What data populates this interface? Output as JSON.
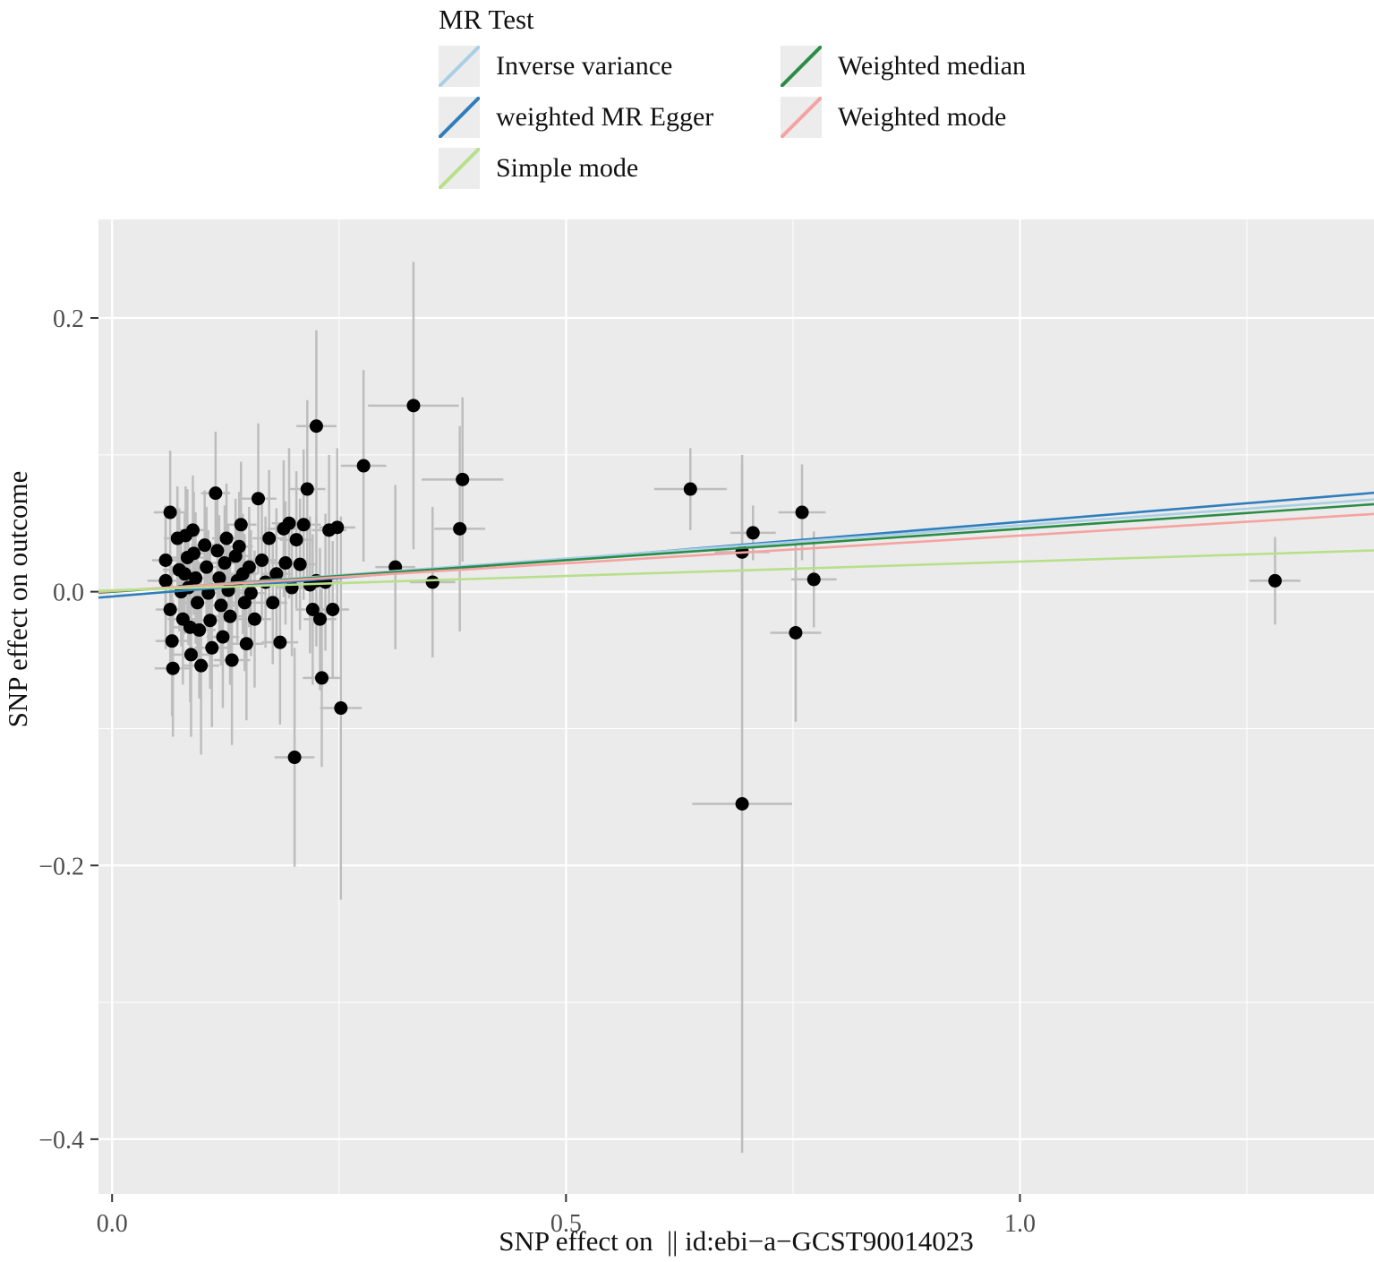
{
  "legend": {
    "title": "MR Test",
    "columns": [
      [
        {
          "label": "Inverse variance",
          "color": "#a9cfe5"
        },
        {
          "label": "weighted MR Egger",
          "color": "#2f7ebc"
        },
        {
          "label": "Simple mode",
          "color": "#b7e08a"
        }
      ],
      [
        {
          "label": "Weighted median",
          "color": "#2b8c46"
        },
        {
          "label": "Weighted mode",
          "color": "#f5a3a1"
        }
      ]
    ]
  },
  "chart_data": {
    "type": "scatter",
    "title": "",
    "xlabel": "SNP effect on  || id:ebi−a−GCST90014023",
    "ylabel": "SNP effect on outcome",
    "xlim": [
      -0.015,
      1.39
    ],
    "ylim": [
      -0.44,
      0.272
    ],
    "panel_background": "#ebebeb",
    "grid": true,
    "gridline_color": "#ffffff",
    "point_color": "#000000",
    "point_radius": 7.5,
    "errorbar_color": "#bdbdbd",
    "xticks": {
      "major": [
        0.0,
        0.5,
        1.0
      ],
      "minor": [
        0.25,
        0.75,
        1.25
      ],
      "labels": [
        "0.0",
        "0.5",
        "1.0"
      ]
    },
    "yticks": {
      "major": [
        0.2,
        0.0,
        -0.2,
        -0.4
      ],
      "minor": [
        0.1,
        -0.1,
        -0.3
      ],
      "labels": [
        "0.2",
        "0.0",
        "−0.2",
        "−0.4"
      ]
    },
    "lines": [
      {
        "name": "MR Egger",
        "color": "#2f7ebc",
        "intercept": -0.0035,
        "slope": 0.0545
      },
      {
        "name": "Inverse variance weighted",
        "color": "#a9cfe5",
        "intercept": 0.0,
        "slope": 0.0485
      },
      {
        "name": "Weighted median",
        "color": "#2b8c46",
        "intercept": 0.0,
        "slope": 0.046
      },
      {
        "name": "Weighted mode",
        "color": "#f5a3a1",
        "intercept": 0.0005,
        "slope": 0.0405
      },
      {
        "name": "Simple mode",
        "color": "#b7e08a",
        "intercept": 0.001,
        "slope": 0.021
      }
    ],
    "points": [
      [
        0.064,
        0.058,
        0.018,
        0.045
      ],
      [
        0.059,
        0.023,
        0.015,
        0.04
      ],
      [
        0.059,
        0.008,
        0.02,
        0.05
      ],
      [
        0.064,
        -0.013,
        0.016,
        0.042
      ],
      [
        0.066,
        -0.036,
        0.018,
        0.055
      ],
      [
        0.067,
        -0.056,
        0.02,
        0.05
      ],
      [
        0.072,
        0.039,
        0.015,
        0.038
      ],
      [
        0.074,
        0.016,
        0.018,
        0.045
      ],
      [
        0.076,
        0.0,
        0.015,
        0.04
      ],
      [
        0.078,
        -0.02,
        0.017,
        0.048
      ],
      [
        0.08,
        0.013,
        0.016,
        0.044
      ],
      [
        0.081,
        0.041,
        0.014,
        0.036
      ],
      [
        0.083,
        0.025,
        0.018,
        0.05
      ],
      [
        0.084,
        0.003,
        0.015,
        0.042
      ],
      [
        0.086,
        -0.026,
        0.019,
        0.055
      ],
      [
        0.087,
        -0.046,
        0.02,
        0.06
      ],
      [
        0.089,
        0.045,
        0.015,
        0.04
      ],
      [
        0.09,
        0.028,
        0.016,
        0.045
      ],
      [
        0.092,
        0.01,
        0.017,
        0.048
      ],
      [
        0.094,
        -0.008,
        0.015,
        0.042
      ],
      [
        0.096,
        -0.028,
        0.018,
        0.05
      ],
      [
        0.098,
        -0.054,
        0.02,
        0.065
      ],
      [
        0.102,
        0.034,
        0.015,
        0.04
      ],
      [
        0.104,
        0.018,
        0.016,
        0.044
      ],
      [
        0.106,
        -0.001,
        0.017,
        0.046
      ],
      [
        0.108,
        -0.021,
        0.018,
        0.05
      ],
      [
        0.11,
        -0.041,
        0.019,
        0.058
      ],
      [
        0.114,
        0.072,
        0.016,
        0.045
      ],
      [
        0.116,
        0.03,
        0.015,
        0.04
      ],
      [
        0.118,
        0.01,
        0.017,
        0.046
      ],
      [
        0.12,
        -0.01,
        0.016,
        0.044
      ],
      [
        0.122,
        -0.033,
        0.018,
        0.052
      ],
      [
        0.124,
        0.021,
        0.015,
        0.042
      ],
      [
        0.126,
        0.039,
        0.016,
        0.04
      ],
      [
        0.128,
        0.001,
        0.017,
        0.048
      ],
      [
        0.13,
        -0.018,
        0.018,
        0.05
      ],
      [
        0.132,
        -0.05,
        0.02,
        0.062
      ],
      [
        0.136,
        0.026,
        0.015,
        0.042
      ],
      [
        0.138,
        0.008,
        0.016,
        0.045
      ],
      [
        0.14,
        0.033,
        0.015,
        0.04
      ],
      [
        0.142,
        0.049,
        0.017,
        0.046
      ],
      [
        0.144,
        0.013,
        0.016,
        0.044
      ],
      [
        0.146,
        -0.008,
        0.018,
        0.05
      ],
      [
        0.148,
        -0.038,
        0.019,
        0.056
      ],
      [
        0.151,
        0.018,
        0.016,
        0.044
      ],
      [
        0.153,
        -0.001,
        0.017,
        0.046
      ],
      [
        0.157,
        -0.02,
        0.018,
        0.05
      ],
      [
        0.161,
        0.068,
        0.02,
        0.055
      ],
      [
        0.165,
        0.023,
        0.016,
        0.044
      ],
      [
        0.169,
        0.007,
        0.017,
        0.048
      ],
      [
        0.173,
        0.039,
        0.018,
        0.05
      ],
      [
        0.177,
        -0.008,
        0.016,
        0.045
      ],
      [
        0.181,
        0.013,
        0.017,
        0.048
      ],
      [
        0.185,
        -0.037,
        0.02,
        0.06
      ],
      [
        0.189,
        0.046,
        0.018,
        0.05
      ],
      [
        0.191,
        0.021,
        0.016,
        0.045
      ],
      [
        0.195,
        0.05,
        0.019,
        0.055
      ],
      [
        0.198,
        0.003,
        0.017,
        0.05
      ],
      [
        0.201,
        -0.121,
        0.022,
        0.08
      ],
      [
        0.203,
        0.038,
        0.018,
        0.05
      ],
      [
        0.207,
        0.02,
        0.017,
        0.048
      ],
      [
        0.211,
        0.049,
        0.019,
        0.055
      ],
      [
        0.215,
        0.075,
        0.02,
        0.065
      ],
      [
        0.218,
        0.005,
        0.018,
        0.05
      ],
      [
        0.221,
        -0.013,
        0.019,
        0.055
      ],
      [
        0.225,
        0.121,
        0.022,
        0.07
      ],
      [
        0.225,
        0.008,
        0.017,
        0.048
      ],
      [
        0.229,
        -0.02,
        0.018,
        0.052
      ],
      [
        0.231,
        -0.063,
        0.021,
        0.065
      ],
      [
        0.235,
        0.007,
        0.018,
        0.05
      ],
      [
        0.239,
        0.045,
        0.019,
        0.055
      ],
      [
        0.243,
        -0.013,
        0.018,
        0.05
      ],
      [
        0.248,
        0.047,
        0.02,
        0.058
      ],
      [
        0.252,
        -0.085,
        0.023,
        0.14
      ],
      [
        0.277,
        0.092,
        0.025,
        0.07
      ],
      [
        0.312,
        0.018,
        0.022,
        0.06
      ],
      [
        0.332,
        0.136,
        0.05,
        0.105
      ],
      [
        0.353,
        0.007,
        0.025,
        0.055
      ],
      [
        0.383,
        0.046,
        0.028,
        0.075
      ],
      [
        0.386,
        0.082,
        0.045,
        0.06
      ],
      [
        0.637,
        0.075,
        0.04,
        0.03
      ],
      [
        0.694,
        0.029,
        0.03,
        0.065
      ],
      [
        0.694,
        -0.155,
        0.055,
        0.255
      ],
      [
        0.706,
        0.043,
        0.025,
        0.02
      ],
      [
        0.753,
        -0.03,
        0.028,
        0.065
      ],
      [
        0.76,
        0.058,
        0.026,
        0.035
      ],
      [
        0.773,
        0.009,
        0.025,
        0.035
      ],
      [
        1.281,
        0.008,
        0.028,
        0.032
      ]
    ]
  }
}
